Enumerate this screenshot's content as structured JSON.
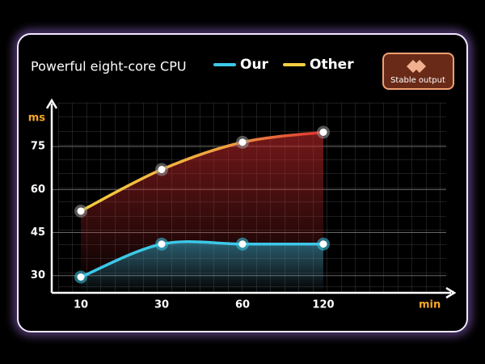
{
  "chart_data": {
    "type": "line",
    "title": "Powerful eight-core CPU",
    "badge": "Stable output",
    "y_unit": "ms",
    "x_unit": "min",
    "categories": [
      "10",
      "30",
      "60",
      "120"
    ],
    "series": [
      {
        "name": "Our",
        "color": "#3cc8e8",
        "values": [
          29.5,
          41,
          41,
          41
        ]
      },
      {
        "name": "Other",
        "color": "#f5d040",
        "values": [
          52.5,
          67,
          76.5,
          80
        ]
      }
    ],
    "ylim": [
      24,
      90
    ],
    "yticks": [
      30,
      45,
      60,
      75
    ],
    "grid": true
  }
}
